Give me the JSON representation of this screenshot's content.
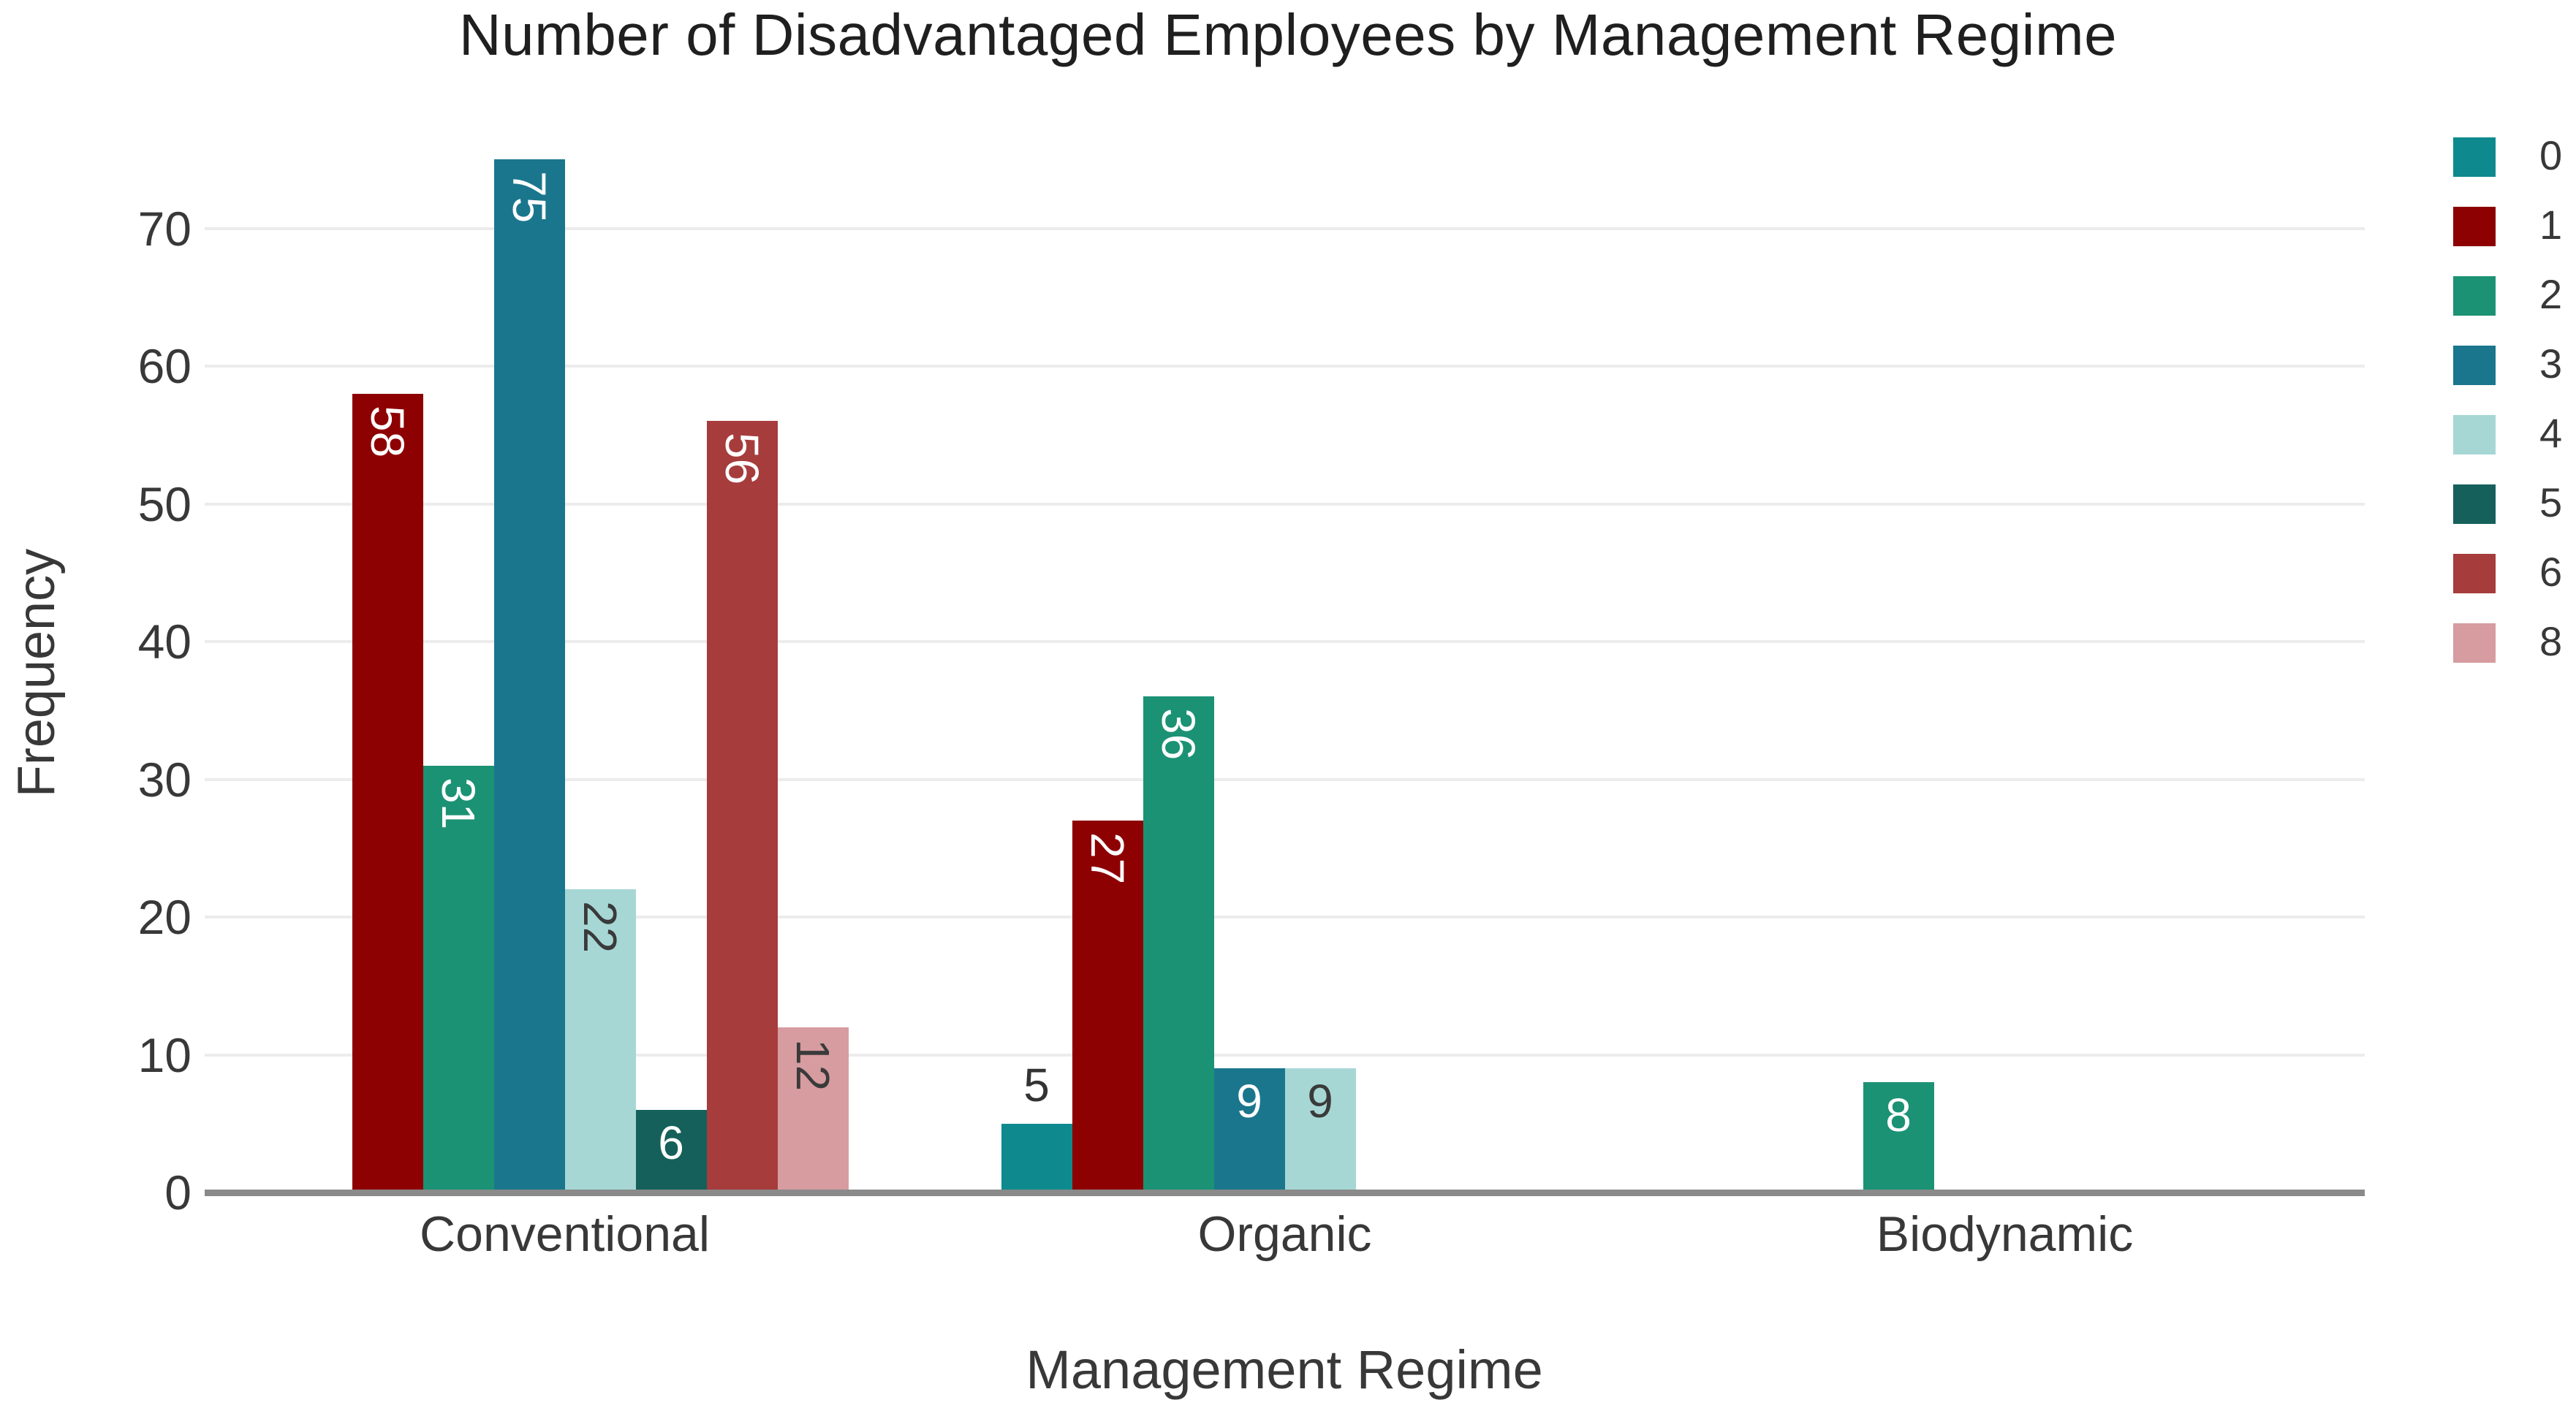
{
  "chart_data": {
    "type": "bar",
    "title": "Number of Disadvantaged Employees by Management Regime",
    "xlabel": "Management Regime",
    "ylabel": "Frequency",
    "categories": [
      "Conventional",
      "Organic",
      "Biodynamic"
    ],
    "yticks": [
      0,
      10,
      20,
      30,
      40,
      50,
      60,
      70
    ],
    "ylim": [
      0,
      77
    ],
    "grid": "horizontal-major",
    "legend_position": "right-top",
    "series": [
      {
        "name": "0",
        "color": "#0E8A8F"
      },
      {
        "name": "1",
        "color": "#8D0103"
      },
      {
        "name": "2",
        "color": "#1B9274"
      },
      {
        "name": "3",
        "color": "#1A768D"
      },
      {
        "name": "4",
        "color": "#A6D7D5"
      },
      {
        "name": "5",
        "color": "#15605A"
      },
      {
        "name": "6",
        "color": "#A63C3C"
      },
      {
        "name": "8",
        "color": "#D69CA0"
      }
    ],
    "points": [
      {
        "category": "Conventional",
        "series": "1",
        "value": 58,
        "label": {
          "rotated": true,
          "placement": "inside",
          "color": "#FFFFFF"
        }
      },
      {
        "category": "Conventional",
        "series": "2",
        "value": 31,
        "label": {
          "rotated": true,
          "placement": "inside",
          "color": "#FFFFFF"
        }
      },
      {
        "category": "Conventional",
        "series": "3",
        "value": 75,
        "label": {
          "rotated": true,
          "placement": "inside",
          "color": "#FFFFFF"
        }
      },
      {
        "category": "Conventional",
        "series": "4",
        "value": 22,
        "label": {
          "rotated": true,
          "placement": "inside",
          "color": "#3A3A3A"
        }
      },
      {
        "category": "Conventional",
        "series": "5",
        "value": 6,
        "label": {
          "rotated": false,
          "placement": "inside",
          "color": "#FFFFFF"
        }
      },
      {
        "category": "Conventional",
        "series": "6",
        "value": 56,
        "label": {
          "rotated": true,
          "placement": "inside",
          "color": "#FFFFFF"
        }
      },
      {
        "category": "Conventional",
        "series": "8",
        "value": 12,
        "label": {
          "rotated": true,
          "placement": "inside",
          "color": "#3A3A3A"
        }
      },
      {
        "category": "Organic",
        "series": "0",
        "value": 5,
        "label": {
          "rotated": false,
          "placement": "above",
          "color": "#333333"
        }
      },
      {
        "category": "Organic",
        "series": "1",
        "value": 27,
        "label": {
          "rotated": true,
          "placement": "inside",
          "color": "#FFFFFF"
        }
      },
      {
        "category": "Organic",
        "series": "2",
        "value": 36,
        "label": {
          "rotated": true,
          "placement": "inside",
          "color": "#FFFFFF"
        }
      },
      {
        "category": "Organic",
        "series": "3",
        "value": 9,
        "label": {
          "rotated": false,
          "placement": "inside",
          "color": "#FFFFFF"
        }
      },
      {
        "category": "Organic",
        "series": "4",
        "value": 9,
        "label": {
          "rotated": false,
          "placement": "inside",
          "color": "#3A3A3A"
        }
      },
      {
        "category": "Biodynamic",
        "series": "2",
        "value": 8,
        "label": {
          "rotated": false,
          "placement": "inside",
          "color": "#FFFFFF"
        }
      }
    ]
  },
  "colors": {
    "background": "#FFFFFF",
    "grid": "#ECECEC",
    "axis_line": "#8A8A8A",
    "tick_text": "#383838",
    "title_text": "#1F1F1F"
  }
}
